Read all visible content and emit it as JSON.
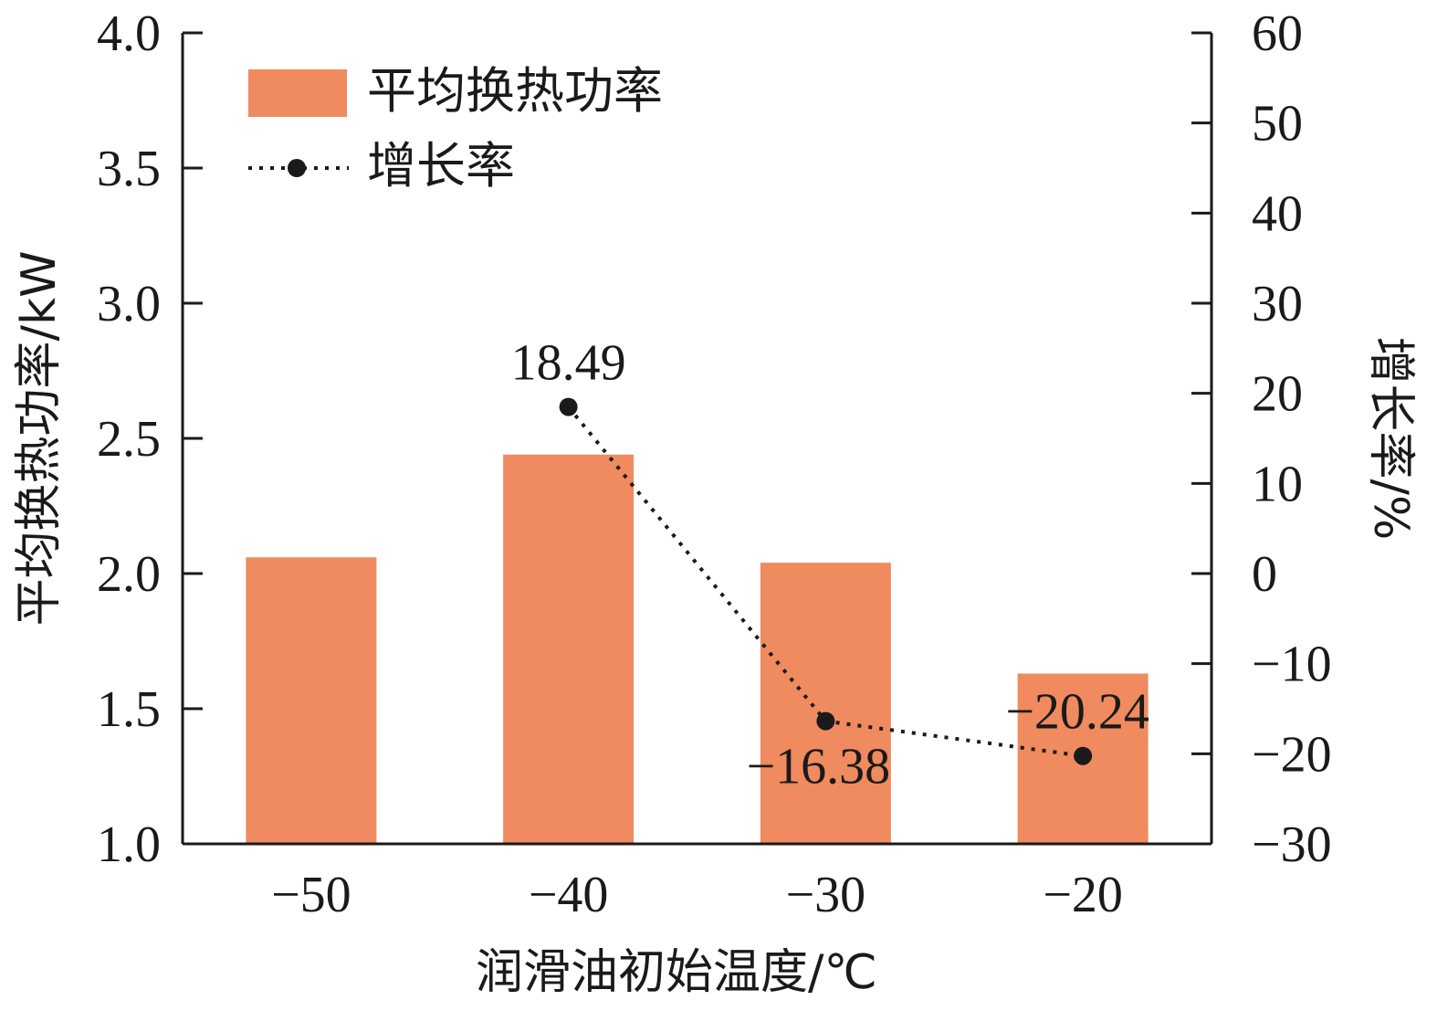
{
  "chart_data": {
    "type": "bar",
    "categories": [
      "−50",
      "−40",
      "−30",
      "−20"
    ],
    "series": [
      {
        "name": "平均换热功率",
        "kind": "bar",
        "axis": "left",
        "values": [
          2.06,
          2.44,
          2.04,
          1.63
        ]
      },
      {
        "name": "增长率",
        "kind": "line",
        "axis": "right",
        "values": [
          null,
          18.49,
          -16.38,
          -20.24
        ],
        "labels": [
          "",
          "18.49",
          "−16.38",
          "−20.24"
        ]
      }
    ],
    "xlabel": "润滑油初始温度/℃",
    "ylabel": "平均换热功率/kW",
    "y2label": "增长率/%",
    "ylim": [
      1.0,
      4.0
    ],
    "y2lim": [
      -30,
      60
    ],
    "yticks": [
      "1.0",
      "1.5",
      "2.0",
      "2.5",
      "3.0",
      "3.5",
      "4.0"
    ],
    "y2ticks": [
      "−30",
      "−20",
      "−10",
      "0",
      "10",
      "20",
      "30",
      "40",
      "50",
      "60"
    ],
    "grid": false,
    "legend_position": "top-left",
    "colors": {
      "bar": "#f08a5f",
      "line": "#1a1a1a"
    }
  }
}
